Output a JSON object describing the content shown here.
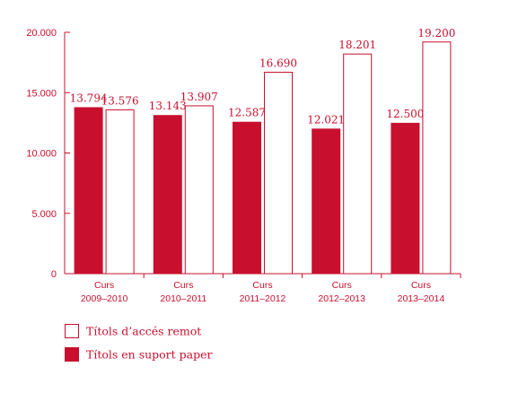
{
  "chart_data": {
    "type": "bar",
    "categories": [
      [
        "Curs",
        "2009–2010"
      ],
      [
        "Curs",
        "2010–2011"
      ],
      [
        "Curs",
        "2011–2012"
      ],
      [
        "Curs",
        "2012–2013"
      ],
      [
        "Curs",
        "2013–2014"
      ]
    ],
    "series": [
      {
        "name": "Títols en suport paper",
        "values": [
          13794,
          13143,
          12587,
          12021,
          12500
        ],
        "labels": [
          "13.794",
          "13.143",
          "12.587",
          "12.021",
          "12.500"
        ],
        "style": "filled"
      },
      {
        "name": "Títols d’accés remot",
        "values": [
          13576,
          13907,
          16690,
          18201,
          19200
        ],
        "labels": [
          "13.576",
          "13.907",
          "16.690",
          "18.201",
          "19.200"
        ],
        "style": "outline"
      }
    ],
    "ylim": [
      0,
      20000
    ],
    "yticks": [
      0,
      5000,
      10000,
      15000,
      20000
    ],
    "ytick_labels": [
      "0",
      "5.000",
      "10.000",
      "15.000",
      "20.000"
    ],
    "legend": [
      {
        "label": "Títols d’accés remot",
        "style": "outline"
      },
      {
        "label": "Títols en suport paper",
        "style": "filled"
      }
    ],
    "legend_position": "bottom-left",
    "grid": false,
    "title": "",
    "xlabel": "",
    "ylabel": ""
  },
  "colors": {
    "accent": "#c8102e",
    "background": "#ffffff"
  }
}
